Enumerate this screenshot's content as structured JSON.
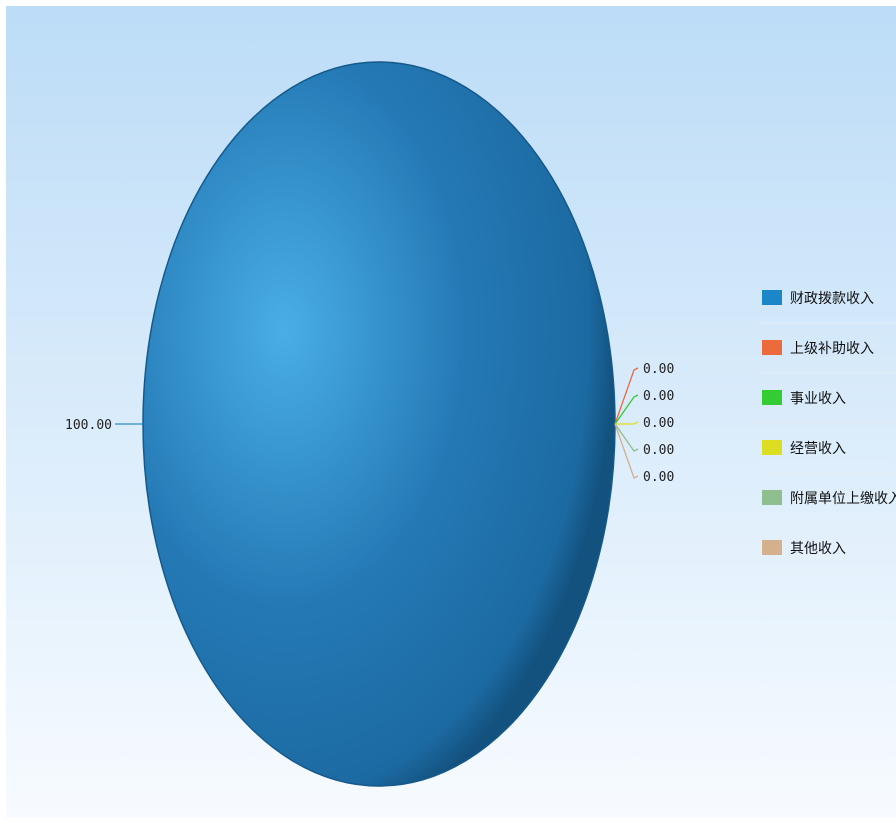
{
  "chart_data": {
    "type": "pie",
    "categories": [
      "财政拨款收入",
      "上级补助收入",
      "事业收入",
      "经营收入",
      "附属单位上缴收入",
      "其他收入"
    ],
    "values": [
      100.0,
      0.0,
      0.0,
      0.0,
      0.0,
      0.0
    ],
    "labels": [
      "100.00",
      "0.00",
      "0.00",
      "0.00",
      "0.00",
      "0.00"
    ],
    "colors": [
      "#1b87c9",
      "#ec6a3c",
      "#33cc33",
      "#dddd22",
      "#8fbf8f",
      "#d4b08c"
    ],
    "legend_position": "right",
    "background_gradient": [
      "#bcdcf7",
      "#f7fbff"
    ]
  }
}
